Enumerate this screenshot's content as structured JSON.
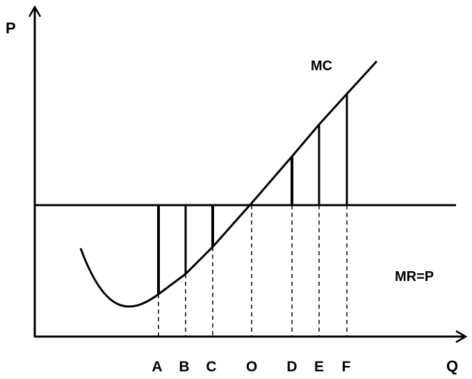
{
  "diagram": {
    "y_axis_label": "P",
    "x_axis_label": "Q",
    "mc_label": "MC",
    "mr_label": "MR=P",
    "quantity_labels": [
      "A",
      "B",
      "C",
      "O",
      "D",
      "E",
      "F"
    ],
    "colors": {
      "line": "#000000",
      "background": "#ffffff"
    }
  }
}
